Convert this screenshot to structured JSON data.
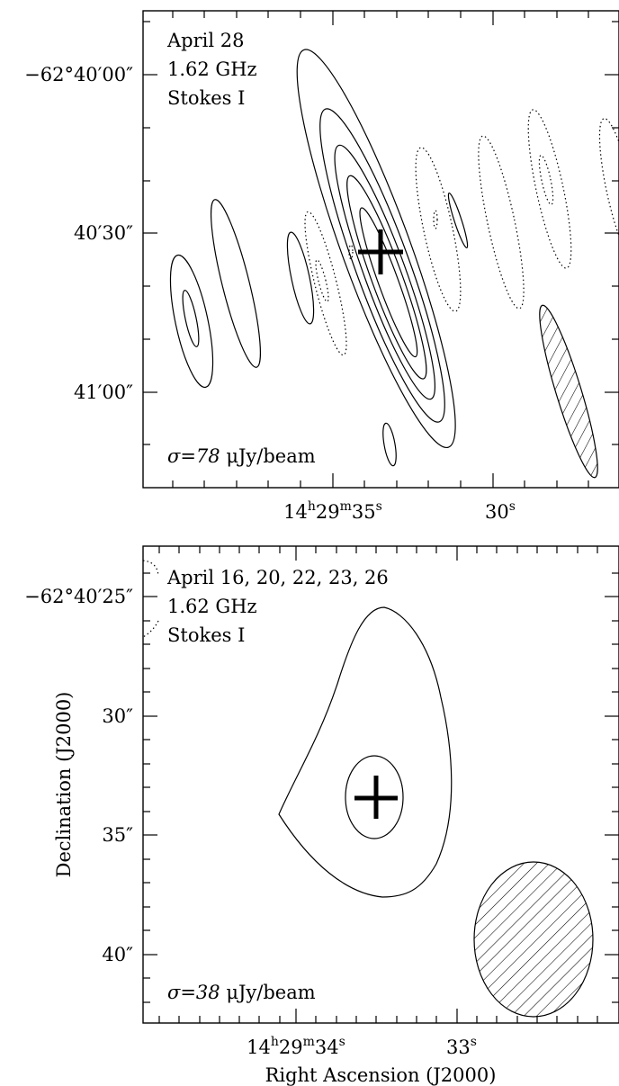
{
  "chart_data": [
    {
      "type": "contour",
      "panel": "top",
      "epoch": "April 28",
      "frequency": "1.62 GHz",
      "stokes": "Stokes I",
      "sigma_label_prefix": "σ=78 ",
      "sigma_label_unit": "μJy/beam",
      "sigma_uJy_per_beam": 78,
      "y_ticks": [
        {
          "dec_arcsec_offset": 0,
          "label_main": "−62°40′00″"
        },
        {
          "dec_arcsec_offset": 30,
          "label_main": "40′30″"
        },
        {
          "dec_arcsec_offset": 60,
          "label_main": "41′00″"
        }
      ],
      "x_ticks": [
        {
          "ra_s": 35,
          "label_pre": "14",
          "sup_h": "h",
          "label_mid": "29",
          "sup_m": "m",
          "label_end": "35",
          "sup_s": "s"
        },
        {
          "ra_s": 30,
          "label_end": "30",
          "sup_s": "s"
        }
      ],
      "source_position": {
        "ra": "14h29m34.3s",
        "dec": "−62°40′34″"
      },
      "beam": "elongated ellipse, hatched, lower-right",
      "contours": "positive solid, negative dotted"
    },
    {
      "type": "contour",
      "panel": "bottom",
      "epoch": "April 16, 20, 22, 23, 26",
      "frequency": "1.62 GHz",
      "stokes": "Stokes I",
      "sigma_label_prefix": "σ=38 ",
      "sigma_label_unit": "μJy/beam",
      "sigma_uJy_per_beam": 38,
      "y_ticks": [
        {
          "dec_arcsec": 25,
          "label_main": "−62°40′25″"
        },
        {
          "dec_arcsec": 30,
          "label_main": "30″"
        },
        {
          "dec_arcsec": 35,
          "label_main": "35″"
        },
        {
          "dec_arcsec": 40,
          "label_main": "40″"
        }
      ],
      "x_ticks": [
        {
          "ra_s": 34,
          "label_pre": "14",
          "sup_h": "h",
          "label_mid": "29",
          "sup_m": "m",
          "label_end": "34",
          "sup_s": "s"
        },
        {
          "ra_s": 33,
          "label_end": "33",
          "sup_s": "s"
        }
      ],
      "xlabel": "Right Ascension (J2000)",
      "ylabel": "Declination (J2000)",
      "beam": "ellipse, hatched, lower-right",
      "contours": "positive solid"
    }
  ]
}
